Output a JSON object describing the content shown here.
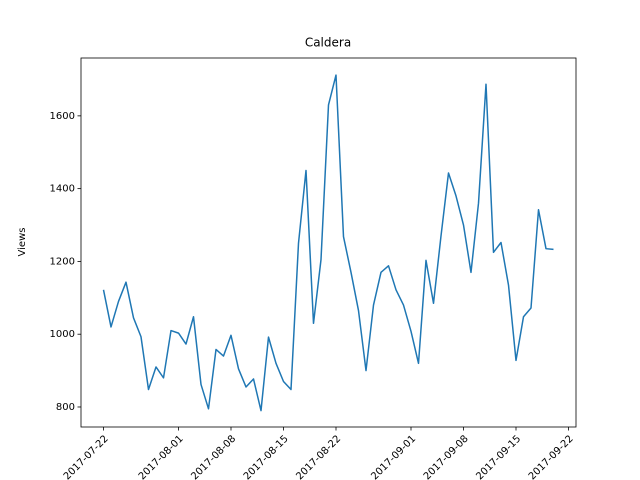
{
  "chart_data": {
    "type": "line",
    "title": "Caldera",
    "y_label": "Views",
    "color": "#1f77b4",
    "x": [
      "2017-07-22",
      "2017-07-23",
      "2017-07-24",
      "2017-07-25",
      "2017-07-26",
      "2017-07-27",
      "2017-07-28",
      "2017-07-29",
      "2017-07-30",
      "2017-07-31",
      "2017-08-01",
      "2017-08-02",
      "2017-08-03",
      "2017-08-04",
      "2017-08-05",
      "2017-08-06",
      "2017-08-07",
      "2017-08-08",
      "2017-08-09",
      "2017-08-10",
      "2017-08-11",
      "2017-08-12",
      "2017-08-13",
      "2017-08-14",
      "2017-08-15",
      "2017-08-16",
      "2017-08-17",
      "2017-08-18",
      "2017-08-19",
      "2017-08-20",
      "2017-08-21",
      "2017-08-22",
      "2017-08-23",
      "2017-08-24",
      "2017-08-25",
      "2017-08-26",
      "2017-08-27",
      "2017-08-28",
      "2017-08-29",
      "2017-08-30",
      "2017-08-31",
      "2017-09-01",
      "2017-09-02",
      "2017-09-03",
      "2017-09-04",
      "2017-09-05",
      "2017-09-06",
      "2017-09-07",
      "2017-09-08",
      "2017-09-09",
      "2017-09-10",
      "2017-09-11",
      "2017-09-12",
      "2017-09-13",
      "2017-09-14",
      "2017-09-15",
      "2017-09-16",
      "2017-09-17",
      "2017-09-18",
      "2017-09-19",
      "2017-09-20"
    ],
    "values": [
      1122,
      1020,
      1090,
      1143,
      1045,
      993,
      848,
      910,
      880,
      1010,
      1003,
      973,
      1048,
      862,
      795,
      958,
      940,
      997,
      905,
      855,
      877,
      790,
      992,
      920,
      870,
      848,
      1250,
      1450,
      1030,
      1205,
      1630,
      1712,
      1268,
      1170,
      1065,
      900,
      1080,
      1170,
      1188,
      1122,
      1080,
      1008,
      920,
      1203,
      1085,
      1270,
      1443,
      1380,
      1300,
      1170,
      1360,
      1687,
      1225,
      1252,
      1135,
      928,
      1048,
      1072,
      1342,
      1235,
      1233
    ],
    "xlim": [
      "2017-07-19",
      "2017-09-23"
    ],
    "xticks": [
      "2017-07-22",
      "2017-08-01",
      "2017-08-08",
      "2017-08-15",
      "2017-08-22",
      "2017-09-01",
      "2017-09-08",
      "2017-09-15",
      "2017-09-22"
    ],
    "ylim": [
      745,
      1759
    ],
    "yticks": [
      800,
      1000,
      1200,
      1400,
      1600
    ],
    "grid": false
  }
}
